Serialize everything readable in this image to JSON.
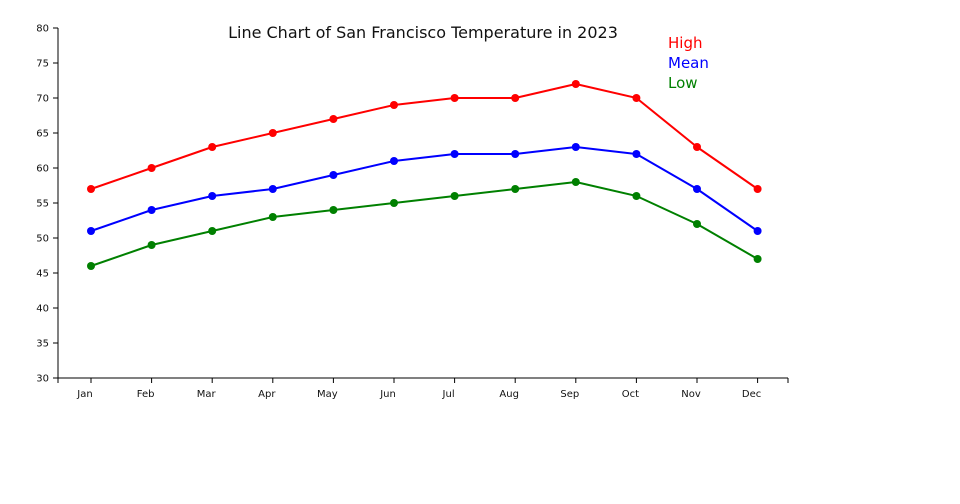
{
  "chart_data": {
    "type": "line",
    "title": "Line Chart of San Francisco Temperature in 2023",
    "xlabel": "",
    "ylabel": "",
    "categories": [
      "Jan",
      "Feb",
      "Mar",
      "Apr",
      "May",
      "Jun",
      "Jul",
      "Aug",
      "Sep",
      "Oct",
      "Nov",
      "Dec"
    ],
    "series": [
      {
        "name": "High",
        "color": "#ff0000",
        "values": [
          57,
          60,
          63,
          65,
          67,
          69,
          70,
          70,
          72,
          70,
          63,
          57
        ]
      },
      {
        "name": "Mean",
        "color": "#0000ff",
        "values": [
          51,
          54,
          56,
          57,
          59,
          61,
          62,
          62,
          63,
          62,
          57,
          51
        ]
      },
      {
        "name": "Low",
        "color": "#008000",
        "values": [
          46,
          49,
          51,
          53,
          54,
          55,
          56,
          57,
          58,
          56,
          52,
          47
        ]
      }
    ],
    "ylim": [
      30,
      80
    ],
    "yticks": [
      30,
      35,
      40,
      45,
      50,
      55,
      60,
      65,
      70,
      75,
      80
    ],
    "grid": false,
    "legend_position": "top-right"
  }
}
